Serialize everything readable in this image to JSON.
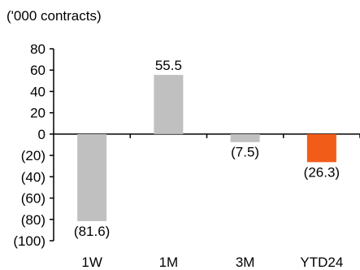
{
  "chart_data": {
    "type": "bar",
    "unit_label": "('000 contracts)",
    "title": "",
    "xlabel": "",
    "ylabel": "",
    "categories": [
      "1W",
      "1M",
      "3M",
      "YTD24"
    ],
    "values": [
      -81.6,
      55.5,
      -7.5,
      -26.3
    ],
    "value_labels": [
      "(81.6)",
      "55.5",
      "(7.5)",
      "(26.3)"
    ],
    "bar_colors": [
      "#c0c0c0",
      "#c0c0c0",
      "#c0c0c0",
      "#f25c19"
    ],
    "ylim": [
      -100,
      80
    ],
    "yticks": [
      80,
      60,
      40,
      20,
      0,
      -20,
      -40,
      -60,
      -80,
      -100
    ],
    "ytick_labels": [
      "80",
      "60",
      "40",
      "20",
      "0",
      "(20)",
      "(40)",
      "(60)",
      "(80)",
      "(100)"
    ],
    "grid": false,
    "legend": "none"
  }
}
